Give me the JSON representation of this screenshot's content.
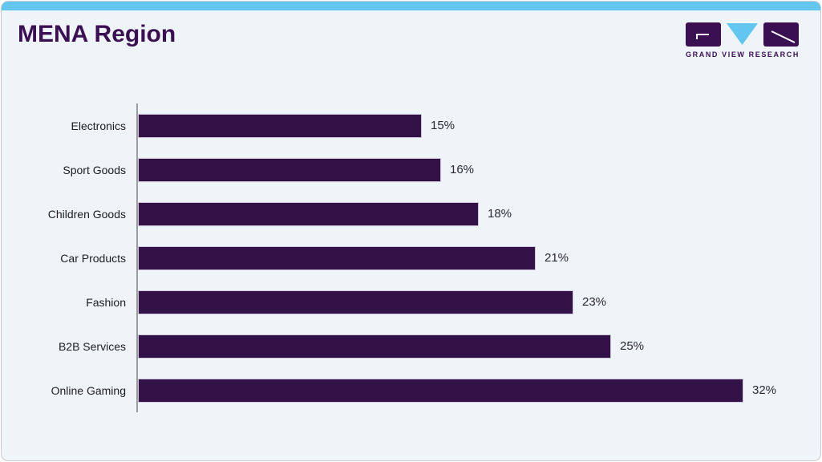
{
  "header": {
    "title": "MENA Region"
  },
  "logo": {
    "text": "GRAND VIEW RESEARCH"
  },
  "colors": {
    "accent_blue": "#62c6ee",
    "bar_purple": "#331347",
    "title_purple": "#3b1053",
    "card_background": "#eff4f9",
    "axis_gray": "#9c9ca0"
  },
  "chart_data": {
    "type": "bar",
    "orientation": "horizontal",
    "title": "MENA Region",
    "categories": [
      "Electronics",
      "Sport Goods",
      "Children Goods",
      "Car Products",
      "Fashion",
      "B2B Services",
      "Online Gaming"
    ],
    "values": [
      15,
      16,
      18,
      21,
      23,
      25,
      32
    ],
    "value_labels": [
      "15%",
      "16%",
      "18%",
      "21%",
      "23%",
      "25%",
      "32%"
    ],
    "xlabel": "",
    "ylabel": "",
    "xlim": [
      0,
      36
    ],
    "grid": false,
    "legend": false
  }
}
